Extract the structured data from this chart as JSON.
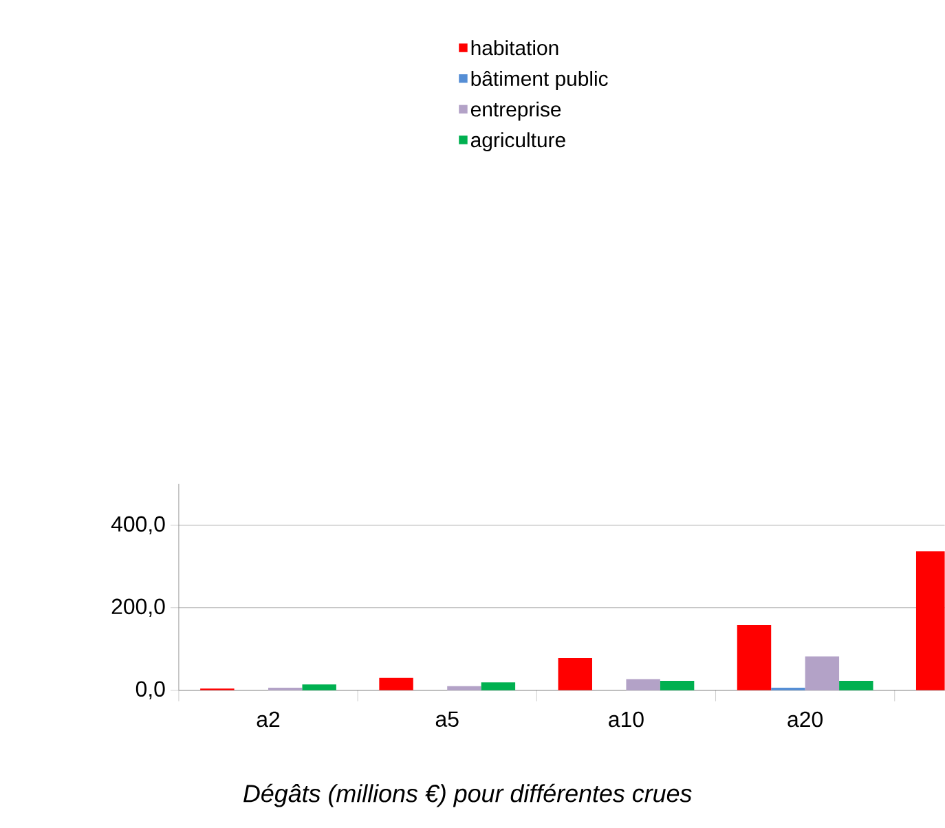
{
  "chart_data": {
    "type": "bar",
    "title": "Dégâts (millions €) pour différentes crues",
    "categories": [
      "a2",
      "a5",
      "a10",
      "a20",
      null
    ],
    "series": [
      {
        "name": "habitation",
        "color": "#ff0000",
        "values": [
          4,
          30,
          78,
          158,
          337
        ]
      },
      {
        "name": "bâtiment public",
        "color": "#558ed5",
        "values": [
          0,
          0,
          0,
          6,
          null
        ]
      },
      {
        "name": "entreprise",
        "color": "#b3a2c7",
        "values": [
          6,
          10,
          27,
          82,
          null
        ]
      },
      {
        "name": "agriculture",
        "color": "#00b050",
        "values": [
          14,
          19,
          23,
          23,
          null
        ]
      }
    ],
    "ylim": [
      0,
      500
    ],
    "yticks": [
      {
        "value": 0,
        "label": "0,0"
      },
      {
        "value": 200,
        "label": "200,0"
      },
      {
        "value": 400,
        "label": "400,0"
      }
    ],
    "grid": "y",
    "legend": "top"
  }
}
